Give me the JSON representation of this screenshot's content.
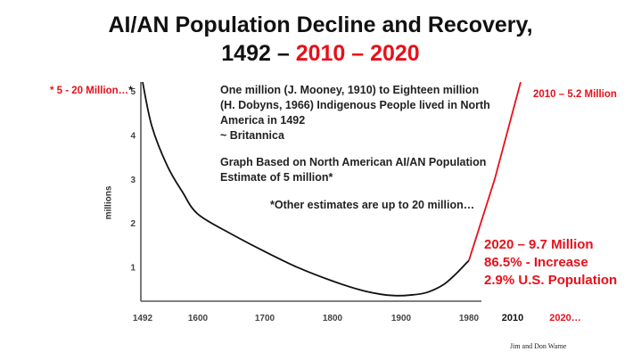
{
  "title": {
    "line1": "AI/AN Population Decline and Recovery,",
    "line2_part1": "1492 – ",
    "line2_part2": "2010 – 2020"
  },
  "notes": {
    "p1_l1": "One million (J. Mooney, 1910) to Eighteen million",
    "p1_l2": "(H. Dobyns, 1966) Indigenous People lived in North",
    "p1_l3": "America in 1492",
    "p1_l4": "~ Britannica",
    "p2_l1": "Graph Based on North American AI/AN Population",
    "p2_l2": "Estimate of 5 million*",
    "p3": "*Other estimates are up to 20 million…"
  },
  "labels": {
    "left_estimate": "* 5 - 20 Million…",
    "star": "*",
    "label_2010": "2010 – 5.2 Million",
    "label_2020_l1": "2020 – 9.7 Million",
    "label_2020_l2": "86.5% - Increase",
    "label_2020_l3": "2.9% U.S. Population",
    "credit": "Jim and Don Warne"
  },
  "chart_data": {
    "type": "line",
    "title": "AI/AN Population Decline and Recovery, 1492 – 2010 – 2020",
    "ylabel": "millions",
    "xlabel": "",
    "xlim": [
      1492,
      2020
    ],
    "ylim": [
      0,
      5
    ],
    "x_ticks": [
      "1492",
      "1600",
      "1700",
      "1800",
      "1900",
      "1980",
      "2010",
      "2020…"
    ],
    "y_ticks": [
      "1",
      "2",
      "3",
      "4",
      "5"
    ],
    "series": [
      {
        "points": [
          {
            "x": 1492,
            "y": 5.2
          },
          {
            "x": 1510,
            "y": 4.2
          },
          {
            "x": 1540,
            "y": 3.3
          },
          {
            "x": 1570,
            "y": 2.7
          },
          {
            "x": 1600,
            "y": 2.2
          },
          {
            "x": 1650,
            "y": 1.75
          },
          {
            "x": 1700,
            "y": 1.35
          },
          {
            "x": 1750,
            "y": 0.98
          },
          {
            "x": 1800,
            "y": 0.68
          },
          {
            "x": 1840,
            "y": 0.48
          },
          {
            "x": 1870,
            "y": 0.38
          },
          {
            "x": 1890,
            "y": 0.35
          },
          {
            "x": 1910,
            "y": 0.36
          },
          {
            "x": 1930,
            "y": 0.42
          },
          {
            "x": 1950,
            "y": 0.6
          },
          {
            "x": 1965,
            "y": 0.85
          },
          {
            "x": 1980,
            "y": 1.15
          }
        ]
      },
      {
        "points": [
          {
            "x": 1980,
            "y": 1.15
          },
          {
            "x": 1995,
            "y": 3.0
          },
          {
            "x": 2010,
            "y": 5.2
          }
        ]
      }
    ]
  },
  "colors": {
    "accent_red": "#e8101a",
    "line_black": "#111111"
  }
}
